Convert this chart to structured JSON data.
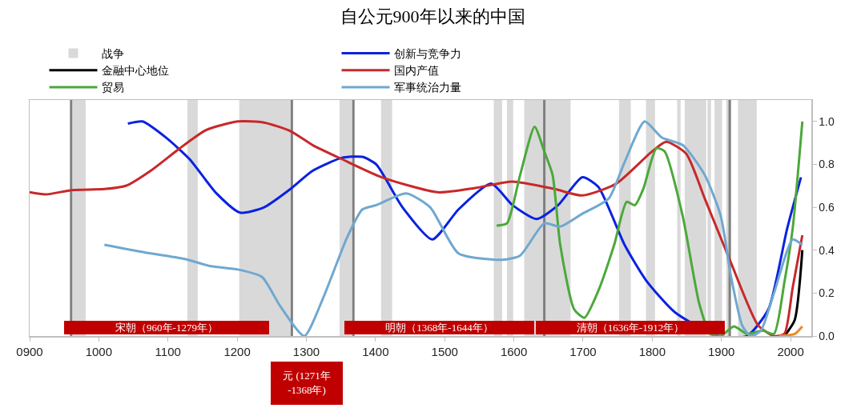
{
  "chart_data": {
    "type": "line",
    "title": "自公元900年以来的中国",
    "legend": "top",
    "grid": false,
    "marker": "none",
    "line_style": "solid",
    "xlim": [
      900,
      2030
    ],
    "xticks": [
      {
        "value": 900,
        "label": "0900"
      },
      1000,
      1100,
      1200,
      1300,
      1400,
      1500,
      1600,
      1700,
      1800,
      1900,
      2000
    ],
    "ylim": [
      0,
      1.1
    ],
    "yticks": [
      {
        "value": 0,
        "label": "0.0"
      },
      0.2,
      0.4,
      0.6,
      0.8,
      {
        "value": 1,
        "label": "1.0"
      }
    ],
    "series": [
      {
        "name": "创新与竞争力",
        "color": "#0a22e0",
        "x": [
          1042,
          1063,
          1097,
          1131,
          1170,
          1204,
          1239,
          1277,
          1309,
          1351,
          1381,
          1401,
          1439,
          1482,
          1520,
          1567,
          1598,
          1633,
          1664,
          1699,
          1722,
          1760,
          1791,
          1833,
          1895,
          1937,
          1968,
          1995,
          2015
        ],
        "values": [
          0.99,
          1.0,
          0.925,
          0.825,
          0.665,
          0.575,
          0.6,
          0.685,
          0.77,
          0.83,
          0.835,
          0.8,
          0.6,
          0.45,
          0.59,
          0.71,
          0.61,
          0.545,
          0.61,
          0.74,
          0.695,
          0.425,
          0.26,
          0.11,
          0,
          0,
          0.125,
          0.5,
          0.74
        ]
      },
      {
        "name": "金融中心地位",
        "color": "#000000",
        "x": [
          1991,
          2006,
          2017
        ],
        "values": [
          0,
          0.075,
          0.4
        ]
      },
      {
        "name": "国内产值",
        "color": "#c8282a",
        "x": [
          900,
          923,
          961,
          1008,
          1039,
          1077,
          1115,
          1155,
          1201,
          1239,
          1277,
          1309,
          1351,
          1409,
          1490,
          1544,
          1598,
          1659,
          1699,
          1748,
          1798,
          1820,
          1849,
          1876,
          1914,
          1953,
          1976,
          1991,
          2003,
          2017
        ],
        "values": [
          0.67,
          0.66,
          0.68,
          0.685,
          0.7,
          0.775,
          0.87,
          0.96,
          1.0,
          0.995,
          0.955,
          0.89,
          0.825,
          0.74,
          0.67,
          0.69,
          0.72,
          0.685,
          0.655,
          0.71,
          0.855,
          0.905,
          0.85,
          0.64,
          0.34,
          0.05,
          0,
          0.01,
          0.225,
          0.47
        ]
      },
      {
        "name": "贸易",
        "color": "#4ca83a",
        "x": [
          1575,
          1590,
          1609,
          1630,
          1644,
          1656,
          1667,
          1687,
          1702,
          1722,
          1745,
          1763,
          1775,
          1787,
          1806,
          1818,
          1844,
          1868,
          1884,
          1899,
          1918,
          1937,
          1960,
          1976,
          1991,
          2003,
          2017
        ],
        "values": [
          0.515,
          0.525,
          0.75,
          0.975,
          0.86,
          0.75,
          0.425,
          0.125,
          0.085,
          0.21,
          0.425,
          0.625,
          0.61,
          0.685,
          0.875,
          0.86,
          0.56,
          0.15,
          0.01,
          0,
          0.045,
          0.01,
          0.025,
          0.01,
          0.25,
          0.5,
          1.0
        ]
      },
      {
        "name": "军事统治力量",
        "color": "#6fa8d0",
        "x": [
          1008,
          1066,
          1123,
          1162,
          1201,
          1236,
          1262,
          1297,
          1324,
          1359,
          1381,
          1401,
          1444,
          1479,
          1520,
          1583,
          1609,
          1644,
          1667,
          1699,
          1737,
          1760,
          1789,
          1814,
          1844,
          1876,
          1899,
          1914,
          1930,
          1942,
          1957,
          1976,
          2003,
          2017
        ],
        "values": [
          0.425,
          0.39,
          0.36,
          0.325,
          0.31,
          0.275,
          0.14,
          0,
          0.175,
          0.46,
          0.59,
          0.61,
          0.665,
          0.6,
          0.385,
          0.355,
          0.375,
          0.525,
          0.51,
          0.57,
          0.64,
          0.81,
          1.0,
          0.925,
          0.89,
          0.75,
          0.56,
          0.275,
          0.05,
          0,
          0.025,
          0.2,
          0.45,
          0.425
        ]
      },
      {
        "color": "#f08a24",
        "x": [
          1983,
          2006,
          2017
        ],
        "values": [
          0,
          0.01,
          0.045
        ]
      }
    ],
    "bands": [
      {
        "axis": "x",
        "from": 962,
        "to": 981,
        "label": "战争",
        "color": "#d9d9d9"
      },
      {
        "axis": "x",
        "from": 1128,
        "to": 1143,
        "color": "#d9d9d9"
      },
      {
        "axis": "x",
        "from": 1203,
        "to": 1277,
        "color": "#d9d9d9"
      },
      {
        "axis": "x",
        "from": 1348,
        "to": 1366,
        "color": "#d9d9d9"
      },
      {
        "axis": "x",
        "from": 1408,
        "to": 1424,
        "color": "#d9d9d9"
      },
      {
        "axis": "x",
        "from": 1571,
        "to": 1583,
        "color": "#d9d9d9"
      },
      {
        "axis": "x",
        "from": 1590,
        "to": 1599,
        "color": "#d9d9d9"
      },
      {
        "axis": "x",
        "from": 1615,
        "to": 1682,
        "color": "#d9d9d9"
      },
      {
        "axis": "x",
        "from": 1752,
        "to": 1769,
        "color": "#d9d9d9"
      },
      {
        "axis": "x",
        "from": 1791,
        "to": 1804,
        "color": "#d9d9d9"
      },
      {
        "axis": "x",
        "from": 1836,
        "to": 1841,
        "color": "#d9d9d9"
      },
      {
        "axis": "x",
        "from": 1847,
        "to": 1878,
        "color": "#d9d9d9"
      },
      {
        "axis": "x",
        "from": 1880,
        "to": 1885,
        "color": "#d9d9d9"
      },
      {
        "axis": "x",
        "from": 1890,
        "to": 1901,
        "color": "#d9d9d9"
      },
      {
        "axis": "x",
        "from": 1907,
        "to": 1914,
        "color": "#d9d9d9"
      },
      {
        "axis": "x",
        "from": 1924,
        "to": 1951,
        "color": "#d9d9d9"
      }
    ],
    "ref_lines": [
      {
        "axis": "x",
        "value": 960,
        "color": "#7f7f7f"
      },
      {
        "axis": "x",
        "value": 1279,
        "color": "#7f7f7f"
      },
      {
        "axis": "x",
        "value": 1368,
        "color": "#7f7f7f"
      },
      {
        "axis": "x",
        "value": 1644,
        "color": "#7f7f7f"
      },
      {
        "axis": "x",
        "value": 1912,
        "color": "#7f7f7f"
      }
    ],
    "annotations": [
      "宋朝（960年-1279年）",
      "明朝（1368年-1644年）",
      "清朝（1636年-1912年）",
      "元 (1271年\n-1368年)"
    ]
  }
}
